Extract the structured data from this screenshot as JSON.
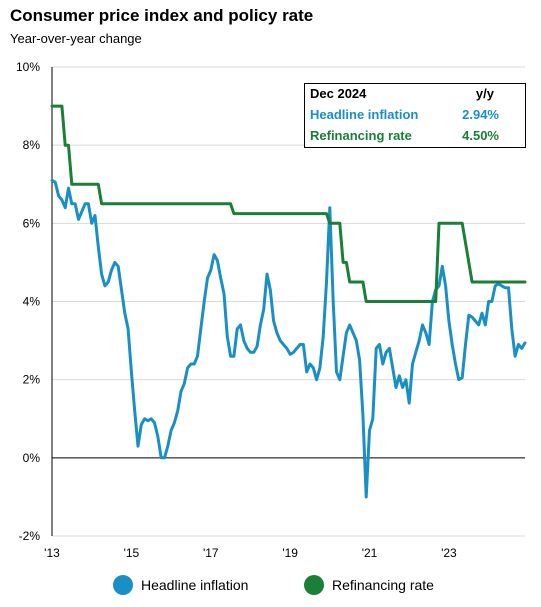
{
  "header": {
    "title": "Consumer price index and policy rate",
    "subtitle": "Year-over-year change"
  },
  "info_box": {
    "header_label": "Dec 2024",
    "header_value": "y/y",
    "rows": [
      {
        "label": "Headline inflation",
        "value": "2.94%"
      },
      {
        "label": "Refinancing rate",
        "value": "4.50%"
      }
    ]
  },
  "legend": {
    "items": [
      {
        "label": "Headline inflation"
      },
      {
        "label": "Refinancing rate"
      }
    ]
  },
  "colors": {
    "headline": "#1a8fc6",
    "refinancing": "#1a7f37",
    "grid": "#d9d9d9"
  },
  "chart_data": {
    "type": "line",
    "xlabel": "",
    "ylabel": "",
    "xlim": [
      "2013-01",
      "2024-12"
    ],
    "ylim": [
      -2,
      10
    ],
    "x_ticks": [
      "'13",
      "'15",
      "'17",
      "'19",
      "'21",
      "'23"
    ],
    "y_ticks": [
      "-2%",
      "0%",
      "2%",
      "4%",
      "6%",
      "8%",
      "10%"
    ],
    "grid": "horizontal",
    "legend_position": "bottom",
    "series": [
      {
        "name": "Headline inflation",
        "points": [
          [
            "2013-01",
            7.1
          ],
          [
            "2013-02",
            7.05
          ],
          [
            "2013-03",
            6.7
          ],
          [
            "2013-04",
            6.6
          ],
          [
            "2013-05",
            6.4
          ],
          [
            "2013-06",
            6.9
          ],
          [
            "2013-07",
            6.5
          ],
          [
            "2013-08",
            6.5
          ],
          [
            "2013-09",
            6.1
          ],
          [
            "2013-10",
            6.3
          ],
          [
            "2013-11",
            6.5
          ],
          [
            "2013-12",
            6.5
          ],
          [
            "2014-01",
            6.0
          ],
          [
            "2014-02",
            6.2
          ],
          [
            "2014-03",
            5.4
          ],
          [
            "2014-04",
            4.7
          ],
          [
            "2014-05",
            4.4
          ],
          [
            "2014-06",
            4.5
          ],
          [
            "2014-07",
            4.8
          ],
          [
            "2014-08",
            5.0
          ],
          [
            "2014-09",
            4.9
          ],
          [
            "2014-10",
            4.3
          ],
          [
            "2014-11",
            3.7
          ],
          [
            "2014-12",
            3.3
          ],
          [
            "2015-01",
            2.2
          ],
          [
            "2015-02",
            1.2
          ],
          [
            "2015-03",
            0.3
          ],
          [
            "2015-04",
            0.85
          ],
          [
            "2015-05",
            1.0
          ],
          [
            "2015-06",
            0.95
          ],
          [
            "2015-07",
            1.0
          ],
          [
            "2015-08",
            0.9
          ],
          [
            "2015-09",
            0.55
          ],
          [
            "2015-10",
            0.0
          ],
          [
            "2015-11",
            0.0
          ],
          [
            "2015-12",
            0.3
          ],
          [
            "2016-01",
            0.7
          ],
          [
            "2016-02",
            0.9
          ],
          [
            "2016-03",
            1.2
          ],
          [
            "2016-04",
            1.7
          ],
          [
            "2016-05",
            1.9
          ],
          [
            "2016-06",
            2.3
          ],
          [
            "2016-07",
            2.4
          ],
          [
            "2016-08",
            2.4
          ],
          [
            "2016-09",
            2.6
          ],
          [
            "2016-10",
            3.3
          ],
          [
            "2016-11",
            4.0
          ],
          [
            "2016-12",
            4.6
          ],
          [
            "2017-01",
            4.8
          ],
          [
            "2017-02",
            5.2
          ],
          [
            "2017-03",
            5.05
          ],
          [
            "2017-04",
            4.6
          ],
          [
            "2017-05",
            4.2
          ],
          [
            "2017-06",
            3.1
          ],
          [
            "2017-07",
            2.6
          ],
          [
            "2017-08",
            2.6
          ],
          [
            "2017-09",
            3.3
          ],
          [
            "2017-10",
            3.4
          ],
          [
            "2017-11",
            3.0
          ],
          [
            "2017-12",
            2.8
          ],
          [
            "2018-01",
            2.7
          ],
          [
            "2018-02",
            2.7
          ],
          [
            "2018-03",
            2.85
          ],
          [
            "2018-04",
            3.4
          ],
          [
            "2018-05",
            3.8
          ],
          [
            "2018-06",
            4.7
          ],
          [
            "2018-07",
            4.3
          ],
          [
            "2018-08",
            3.5
          ],
          [
            "2018-09",
            3.2
          ],
          [
            "2018-10",
            3.0
          ],
          [
            "2018-11",
            2.9
          ],
          [
            "2018-12",
            2.8
          ],
          [
            "2019-01",
            2.65
          ],
          [
            "2019-02",
            2.7
          ],
          [
            "2019-03",
            2.8
          ],
          [
            "2019-04",
            2.9
          ],
          [
            "2019-05",
            2.9
          ],
          [
            "2019-06",
            2.2
          ],
          [
            "2019-07",
            2.4
          ],
          [
            "2019-08",
            2.3
          ],
          [
            "2019-09",
            2.0
          ],
          [
            "2019-10",
            2.3
          ],
          [
            "2019-11",
            3.1
          ],
          [
            "2019-12",
            4.5
          ],
          [
            "2020-01",
            6.4
          ],
          [
            "2020-02",
            4.0
          ],
          [
            "2020-03",
            2.2
          ],
          [
            "2020-04",
            2.0
          ],
          [
            "2020-05",
            2.6
          ],
          [
            "2020-06",
            3.2
          ],
          [
            "2020-07",
            3.4
          ],
          [
            "2020-08",
            3.2
          ],
          [
            "2020-09",
            3.0
          ],
          [
            "2020-10",
            2.5
          ],
          [
            "2020-11",
            1.1
          ],
          [
            "2020-12",
            -1.0
          ],
          [
            "2021-01",
            0.7
          ],
          [
            "2021-02",
            1.0
          ],
          [
            "2021-03",
            2.8
          ],
          [
            "2021-04",
            2.9
          ],
          [
            "2021-05",
            2.4
          ],
          [
            "2021-06",
            2.7
          ],
          [
            "2021-07",
            2.8
          ],
          [
            "2021-08",
            2.3
          ],
          [
            "2021-09",
            1.8
          ],
          [
            "2021-10",
            2.1
          ],
          [
            "2021-11",
            1.8
          ],
          [
            "2021-12",
            2.0
          ],
          [
            "2022-01",
            1.4
          ],
          [
            "2022-02",
            2.4
          ],
          [
            "2022-03",
            2.7
          ],
          [
            "2022-04",
            3.0
          ],
          [
            "2022-05",
            3.4
          ],
          [
            "2022-06",
            3.2
          ],
          [
            "2022-07",
            2.9
          ],
          [
            "2022-08",
            4.0
          ],
          [
            "2022-09",
            4.3
          ],
          [
            "2022-10",
            4.4
          ],
          [
            "2022-11",
            4.9
          ],
          [
            "2022-12",
            4.4
          ],
          [
            "2023-01",
            3.5
          ],
          [
            "2023-02",
            2.9
          ],
          [
            "2023-03",
            2.4
          ],
          [
            "2023-04",
            2.0
          ],
          [
            "2023-05",
            2.05
          ],
          [
            "2023-06",
            2.9
          ],
          [
            "2023-07",
            3.65
          ],
          [
            "2023-08",
            3.6
          ],
          [
            "2023-09",
            3.5
          ],
          [
            "2023-10",
            3.4
          ],
          [
            "2023-11",
            3.7
          ],
          [
            "2023-12",
            3.4
          ],
          [
            "2024-01",
            4.0
          ],
          [
            "2024-02",
            4.0
          ],
          [
            "2024-03",
            4.4
          ],
          [
            "2024-04",
            4.45
          ],
          [
            "2024-05",
            4.4
          ],
          [
            "2024-06",
            4.35
          ],
          [
            "2024-07",
            4.35
          ],
          [
            "2024-08",
            3.3
          ],
          [
            "2024-09",
            2.6
          ],
          [
            "2024-10",
            2.9
          ],
          [
            "2024-11",
            2.8
          ],
          [
            "2024-12",
            2.94
          ]
        ]
      },
      {
        "name": "Refinancing rate",
        "points": [
          [
            "2013-01",
            9.0
          ],
          [
            "2013-04",
            9.0
          ],
          [
            "2013-05",
            8.0
          ],
          [
            "2013-06",
            8.0
          ],
          [
            "2013-07",
            7.0
          ],
          [
            "2013-12",
            7.0
          ],
          [
            "2014-03",
            7.0
          ],
          [
            "2014-04",
            6.5
          ],
          [
            "2017-07",
            6.5
          ],
          [
            "2017-08",
            6.25
          ],
          [
            "2019-12",
            6.25
          ],
          [
            "2020-01",
            6.0
          ],
          [
            "2020-04",
            6.0
          ],
          [
            "2020-05",
            5.0
          ],
          [
            "2020-06",
            5.0
          ],
          [
            "2020-07",
            4.5
          ],
          [
            "2020-11",
            4.5
          ],
          [
            "2020-12",
            4.0
          ],
          [
            "2022-09",
            4.0
          ],
          [
            "2022-10",
            6.0
          ],
          [
            "2023-05",
            6.0
          ],
          [
            "2023-08",
            4.5
          ],
          [
            "2024-12",
            4.5
          ]
        ]
      }
    ]
  }
}
